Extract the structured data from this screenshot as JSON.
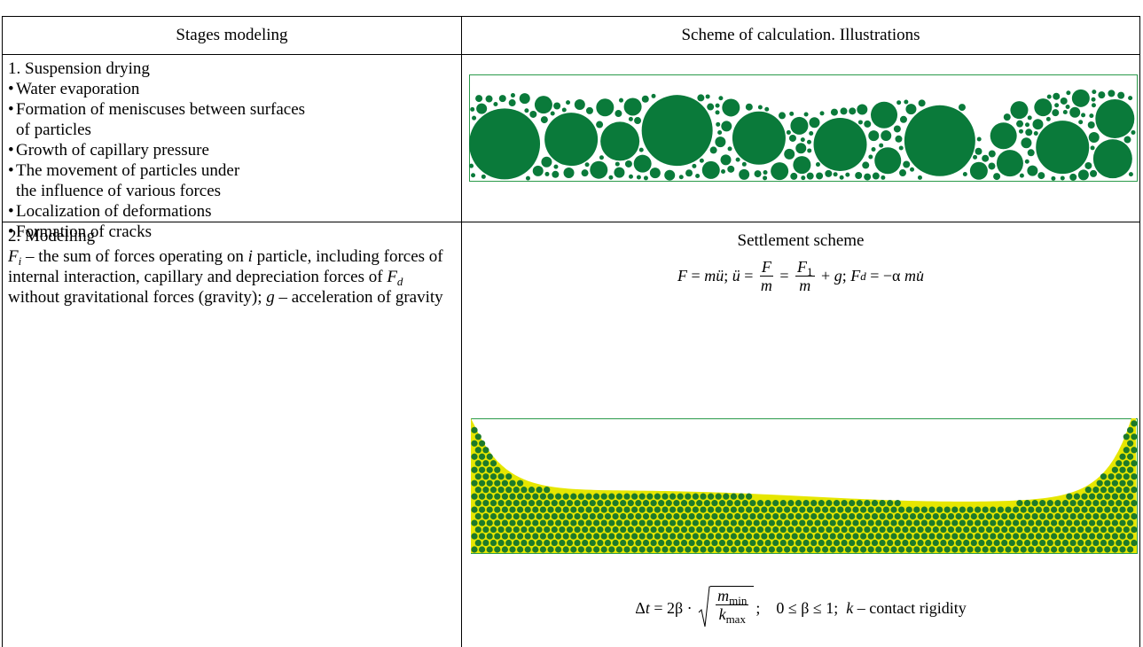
{
  "table": {
    "header": [
      "Stages modeling",
      "Scheme of calculation. Illustrations"
    ],
    "rows": [
      {
        "stage": {
          "title": "1. Suspension drying",
          "items": [
            "Water evaporation",
            "Formation of meniscuses between surfaces\nof particles",
            "Growth of capillary pressure",
            "The movement of particles under\nthe influence of various forces",
            "Localization of deformations",
            "Formation of cracks"
          ]
        }
      },
      {
        "stage": {
          "title": "2. Modelling",
          "description": [
            "F",
            "i",
            " – the sum of forces operating on ",
            "i",
            " particle, including forces of internal interaction, capillary and depreciation forces of ",
            "F",
            "d",
            " without gravitational forces (gravity); ",
            "g",
            " – acceleration of gravity"
          ]
        },
        "scheme": {
          "caption": "Settlement scheme",
          "formula_motion": [
            "F",
            " = ",
            "m",
            "ü",
            "; ",
            "ü",
            " = ",
            "F",
            "m",
            " = ",
            "F",
            "1",
            "m",
            " + ",
            "g",
            "; ",
            "F",
            "d",
            " = −α ",
            "m",
            "u̇"
          ],
          "formula_step": [
            "Δ",
            "t",
            " = 2β · ",
            "m",
            "min",
            "k",
            "max",
            ";    0 ≤ β ≤ 1;  ",
            "k",
            " – contact rigidity"
          ]
        }
      }
    ]
  }
}
